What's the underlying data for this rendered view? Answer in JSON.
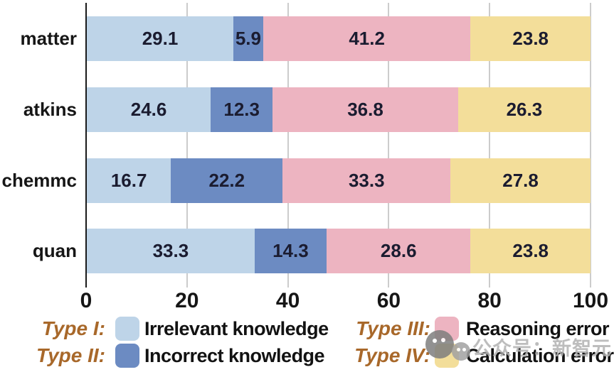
{
  "chart_data": {
    "type": "bar",
    "orientation": "horizontal",
    "stacked": true,
    "title": "",
    "xlabel": "",
    "ylabel": "",
    "categories": [
      "matter",
      "atkins",
      "chemmc",
      "quan"
    ],
    "series": [
      {
        "type_label": "Type I:",
        "name": "Irrelevant knowledge",
        "color": "#bed4e8",
        "values": [
          29.1,
          24.6,
          16.7,
          33.3
        ]
      },
      {
        "type_label": "Type II:",
        "name": "Incorrect knowledge",
        "color": "#6c8bc2",
        "values": [
          5.9,
          12.3,
          22.2,
          14.3
        ]
      },
      {
        "type_label": "Type III:",
        "name": "Reasoning error",
        "color": "#edb4c1",
        "values": [
          41.2,
          36.8,
          33.3,
          28.6
        ]
      },
      {
        "type_label": "Type IV:",
        "name": "Calculation error",
        "color": "#f3de9a",
        "values": [
          23.8,
          26.3,
          27.8,
          23.8
        ]
      }
    ],
    "xticks": [
      0,
      20,
      40,
      60,
      80,
      100
    ],
    "xlim": [
      0,
      100
    ],
    "grid": true,
    "value_labels": true,
    "legend_position": "bottom"
  },
  "watermark": {
    "text": "公众号：新智元",
    "icon": "wechat-bubbles-icon"
  },
  "colors": {
    "axis": "#1a1a1a",
    "gridline": "#cccccc",
    "value_label": "#1b1c30",
    "category_label": "#161616",
    "tick_label": "#161616",
    "legend_type": "#a8682a",
    "legend_label": "#121212",
    "watermark_text": "#b2b2b2"
  }
}
